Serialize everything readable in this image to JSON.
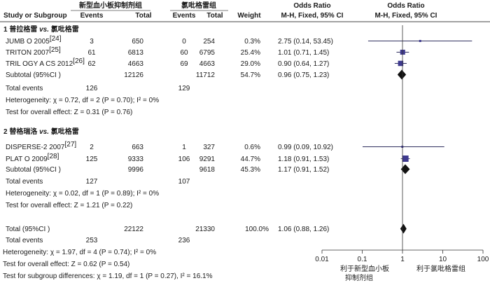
{
  "header": {
    "group_new": "新型血小板抑制剂组",
    "group_clop": "氯吡格雷组",
    "or_label": "Odds Ratio",
    "or_label2": "Odds Ratio",
    "study": "Study or Subgroup",
    "events": "Events",
    "total": "Total",
    "events2": "Events",
    "total2": "Total",
    "weight": "Weight",
    "method": "M-H, Fixed, 95% CI",
    "method2": "M-H, Fixed, 95% CI"
  },
  "chart_data": {
    "type": "forest",
    "x_scale": "log",
    "xlim": [
      0.01,
      100
    ],
    "x_ticks": [
      "0.01",
      "0.1",
      "1",
      "10",
      "100"
    ],
    "favours_left": [
      "利于新型血小板",
      "抑制剂组"
    ],
    "favours_right": "利于氯吡格雷组",
    "subgroups": [
      {
        "title_num": "1",
        "title_a": "普拉格雷",
        "title_vs": "vs.",
        "title_b": "氯吡格雷",
        "studies": [
          {
            "name": "JUMB O 2005",
            "ref": "[24]",
            "e1": "3",
            "n1": "650",
            "e2": "0",
            "n2": "254",
            "weight": "0.3%",
            "or_text": "2.75 (0.14, 53.45)",
            "or": 2.75,
            "lo": 0.14,
            "hi": 53.45
          },
          {
            "name": "TRITON   2007",
            "ref": "[25]",
            "e1": "61",
            "n1": "6813",
            "e2": "60",
            "n2": "6795",
            "weight": "25.4%",
            "or_text": "1.01 (0.71, 1.45)",
            "or": 1.01,
            "lo": 0.71,
            "hi": 1.45
          },
          {
            "name": "TRIL OGY A CS 2012",
            "ref": "[26]",
            "e1": "62",
            "n1": "4663",
            "e2": "69",
            "n2": "4663",
            "weight": "29.0%",
            "or_text": "0.90 (0.64, 1.27)",
            "or": 0.9,
            "lo": 0.64,
            "hi": 1.27
          }
        ],
        "subtotal": {
          "label": "Subtotal (95%CI )",
          "n1": "12126",
          "n2": "11712",
          "weight": "54.7%",
          "or_text": "0.96 (0.75, 1.23)",
          "or": 0.96,
          "lo": 0.75,
          "hi": 1.23
        },
        "total_events": {
          "label": "Total events",
          "e1": "126",
          "e2": "129"
        },
        "heterogeneity": "Heterogeneity: χ = 0.72, df = 2 (P = 0.70); I² = 0%",
        "overall_effect": "Test for overall effect: Z = 0.31 (P = 0.76)"
      },
      {
        "title_num": "2",
        "title_a": "替格瑞洛",
        "title_vs": "vs.",
        "title_b": "氯吡格雷",
        "studies": [
          {
            "name": "DISPERSE-2  2007",
            "ref": "[27]",
            "e1": "2",
            "n1": "663",
            "e2": "1",
            "n2": "327",
            "weight": "0.6%",
            "or_text": "0.99 (0.09, 10.92)",
            "or": 0.99,
            "lo": 0.09,
            "hi": 10.92
          },
          {
            "name": "PLAT O 2009",
            "ref": "[28]",
            "e1": "125",
            "n1": "9333",
            "e2": "106",
            "n2": "9291",
            "weight": "44.7%",
            "or_text": "1.18 (0.91, 1.53)",
            "or": 1.18,
            "lo": 0.91,
            "hi": 1.53
          }
        ],
        "subtotal": {
          "label": "Subtotal (95%CI )",
          "n1": "9996",
          "n2": "9618",
          "weight": "45.3%",
          "or_text": "1.17 (0.91, 1.52)",
          "or": 1.17,
          "lo": 0.91,
          "hi": 1.52
        },
        "total_events": {
          "label": "Total events",
          "e1": "127",
          "e2": "107"
        },
        "heterogeneity": "Heterogeneity: χ = 0.02, df = 1 (P = 0.89); I² = 0%",
        "overall_effect": "Test for overall effect: Z = 1.21 (P = 0.22)"
      }
    ],
    "total": {
      "label": "Total (95%CI )",
      "n1": "22122",
      "n2": "21330",
      "weight": "100.0%",
      "or_text": "1.06 (0.88, 1.26)",
      "or": 1.06,
      "lo": 0.88,
      "hi": 1.26
    },
    "total_events": {
      "label": "Total events",
      "e1": "253",
      "e2": "236"
    },
    "heterogeneity": "Heterogeneity: χ = 1.97, df = 4 (P = 0.74); I² = 0%",
    "overall_effect": "Test for overall effect: Z = 0.62 (P = 0.54)",
    "subgroup_diff": "Test for subgroup differences: χ = 1.19, df = 1 (P = 0.27), I² = 16.1%"
  },
  "colors": {
    "text": "#1a1a1a",
    "marker": "#3f3a8f",
    "line": "#2f2f5f",
    "diamond": "#111111",
    "rule": "#555555"
  }
}
